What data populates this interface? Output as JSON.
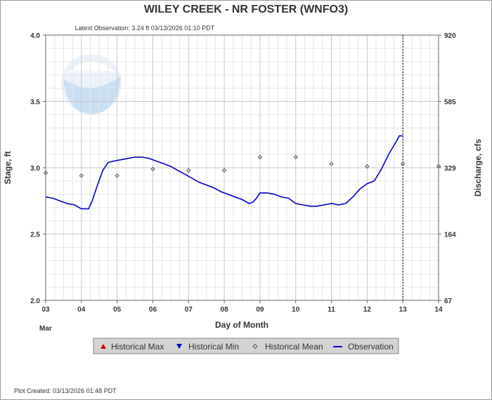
{
  "chart_data": {
    "type": "line",
    "title": "WILEY CREEK - NR FOSTER  (WNFO3)",
    "subtitle": "Latest Observation: 3.24 ft 03/13/2026 01:10 PDT",
    "footer": "Plot Created: 03/13/2026 01:48 PDT",
    "logo_text": "NOAA",
    "xlabel": "Day of Month",
    "x_month_label": "Mar",
    "ylabel_left": "Stage, ft",
    "ylabel_right": "Discharge, cfs",
    "xlim": [
      3,
      14
    ],
    "ylim": [
      2.0,
      4.0
    ],
    "x_ticks": [
      "03",
      "04",
      "05",
      "06",
      "07",
      "08",
      "09",
      "10",
      "11",
      "12",
      "13",
      "14"
    ],
    "y_ticks_left": [
      "2.0",
      "2.5",
      "3.0",
      "3.5",
      "4.0"
    ],
    "y_ticks_right": [
      {
        "stage": 2.0,
        "label": "67"
      },
      {
        "stage": 2.5,
        "label": "164"
      },
      {
        "stage": 3.0,
        "label": "329"
      },
      {
        "stage": 3.5,
        "label": "585"
      },
      {
        "stage": 4.0,
        "label": "920"
      }
    ],
    "grid": true,
    "current_time_marker_x": 13.0,
    "legend": {
      "placement": "bottom",
      "entries": [
        {
          "label": "Historical Max",
          "symbol": "triangle-up",
          "color": "#cc0000"
        },
        {
          "label": "Historical Min",
          "symbol": "triangle-down",
          "color": "#0000cc"
        },
        {
          "label": "Historical Mean",
          "symbol": "diamond",
          "color": "#555555"
        },
        {
          "label": "Observation",
          "symbol": "line",
          "color": "#0000cc"
        }
      ]
    },
    "series": [
      {
        "name": "Observation",
        "color": "#0000cc",
        "points": [
          [
            3.0,
            2.78
          ],
          [
            3.2,
            2.77
          ],
          [
            3.4,
            2.75
          ],
          [
            3.6,
            2.73
          ],
          [
            3.8,
            2.72
          ],
          [
            4.0,
            2.69
          ],
          [
            4.2,
            2.69
          ],
          [
            4.3,
            2.75
          ],
          [
            4.45,
            2.87
          ],
          [
            4.6,
            2.98
          ],
          [
            4.75,
            3.04
          ],
          [
            4.9,
            3.05
          ],
          [
            5.1,
            3.06
          ],
          [
            5.3,
            3.07
          ],
          [
            5.5,
            3.08
          ],
          [
            5.7,
            3.08
          ],
          [
            5.9,
            3.07
          ],
          [
            6.1,
            3.05
          ],
          [
            6.3,
            3.03
          ],
          [
            6.5,
            3.01
          ],
          [
            6.7,
            2.98
          ],
          [
            6.9,
            2.95
          ],
          [
            7.1,
            2.92
          ],
          [
            7.3,
            2.89
          ],
          [
            7.5,
            2.87
          ],
          [
            7.7,
            2.85
          ],
          [
            7.9,
            2.82
          ],
          [
            8.1,
            2.8
          ],
          [
            8.3,
            2.78
          ],
          [
            8.5,
            2.76
          ],
          [
            8.7,
            2.73
          ],
          [
            8.8,
            2.74
          ],
          [
            8.9,
            2.77
          ],
          [
            9.0,
            2.81
          ],
          [
            9.2,
            2.81
          ],
          [
            9.4,
            2.8
          ],
          [
            9.6,
            2.78
          ],
          [
            9.8,
            2.77
          ],
          [
            10.0,
            2.73
          ],
          [
            10.2,
            2.72
          ],
          [
            10.4,
            2.71
          ],
          [
            10.6,
            2.71
          ],
          [
            10.8,
            2.72
          ],
          [
            11.0,
            2.73
          ],
          [
            11.2,
            2.72
          ],
          [
            11.4,
            2.73
          ],
          [
            11.6,
            2.78
          ],
          [
            11.8,
            2.84
          ],
          [
            12.0,
            2.88
          ],
          [
            12.2,
            2.9
          ],
          [
            12.4,
            2.99
          ],
          [
            12.6,
            3.1
          ],
          [
            12.8,
            3.19
          ],
          [
            12.9,
            3.24
          ],
          [
            13.0,
            3.24
          ]
        ]
      },
      {
        "name": "Historical Mean",
        "color": "#555555",
        "points": [
          [
            3.0,
            2.96
          ],
          [
            4.0,
            2.94
          ],
          [
            5.0,
            2.94
          ],
          [
            6.0,
            2.99
          ],
          [
            7.0,
            2.98
          ],
          [
            8.0,
            2.98
          ],
          [
            9.0,
            3.08
          ],
          [
            10.0,
            3.08
          ],
          [
            11.0,
            3.03
          ],
          [
            12.0,
            3.01
          ],
          [
            13.0,
            3.03
          ],
          [
            14.0,
            3.01
          ]
        ]
      }
    ]
  }
}
